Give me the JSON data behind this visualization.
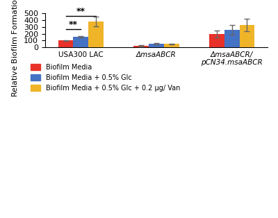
{
  "groups": [
    "USA300 LAC",
    "ΔmsaABCR",
    "ΔmsaABCR/\npCN34.msaABCR"
  ],
  "series": [
    "Biofilm Media",
    "Biofilm Media + 0.5% Glc",
    "Biofilm Media + 0.5% Glc + 0.2 ug/ Van"
  ],
  "values": [
    [
      100,
      155,
      375
    ],
    [
      22,
      50,
      50
    ],
    [
      200,
      260,
      325
    ]
  ],
  "errors": [
    [
      8,
      12,
      70
    ],
    [
      8,
      10,
      5
    ],
    [
      50,
      70,
      90
    ]
  ],
  "colors": [
    "#e8312a",
    "#4472c4",
    "#f0b429"
  ],
  "ylim": [
    0,
    500
  ],
  "yticks": [
    0,
    100,
    200,
    300,
    400,
    500
  ],
  "bar_width": 0.22,
  "background_color": "#ffffff"
}
